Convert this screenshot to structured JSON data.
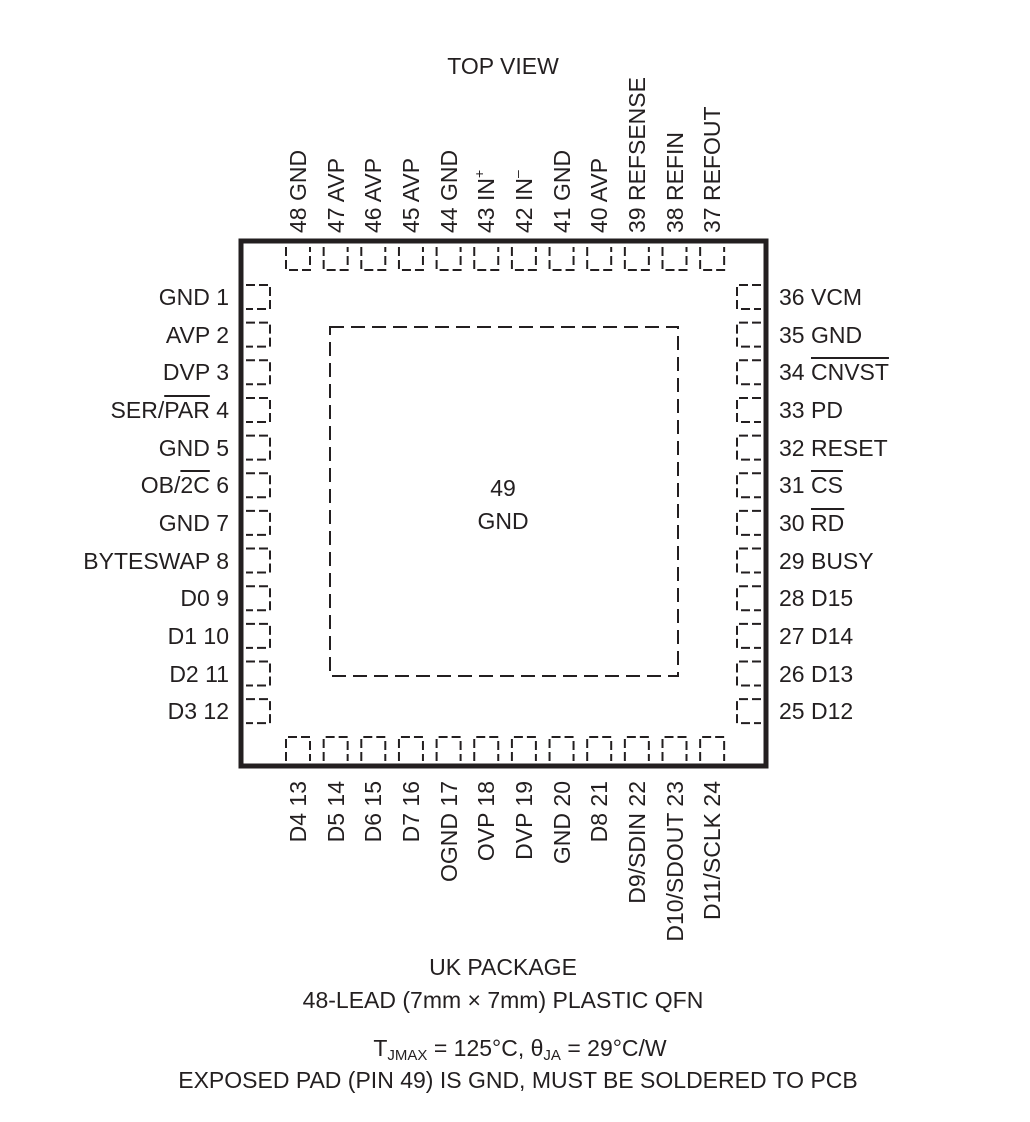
{
  "header": {
    "title": "TOP VIEW"
  },
  "exposed_pad": {
    "number": "49",
    "name": "GND"
  },
  "pins": {
    "left": [
      {
        "num": "1",
        "pre": "GND "
      },
      {
        "num": "2",
        "pre": "AVP "
      },
      {
        "num": "3",
        "pre": "DVP "
      },
      {
        "num": "4",
        "pre": "SER/",
        "bar": "PAR",
        "post": " "
      },
      {
        "num": "5",
        "pre": "GND "
      },
      {
        "num": "6",
        "pre": "OB/",
        "bar": "2C",
        "post": " "
      },
      {
        "num": "7",
        "pre": "GND  "
      },
      {
        "num": "8",
        "pre": "BYTESWAP "
      },
      {
        "num": "9",
        "pre": "D0 "
      },
      {
        "num": "10",
        "pre": "D1 "
      },
      {
        "num": "11",
        "pre": "D2 "
      },
      {
        "num": "12",
        "pre": "D3 "
      }
    ],
    "bottom": [
      {
        "num": "13",
        "pre": "D4 "
      },
      {
        "num": "14",
        "pre": "D5 "
      },
      {
        "num": "15",
        "pre": "D6 "
      },
      {
        "num": "16",
        "pre": "D7 "
      },
      {
        "num": "17",
        "pre": "OGND "
      },
      {
        "num": "18",
        "pre": "OVP "
      },
      {
        "num": "19",
        "pre": "DVP "
      },
      {
        "num": "20",
        "pre": "GND "
      },
      {
        "num": "21",
        "pre": "D8 "
      },
      {
        "num": "22",
        "pre": "D9/SDIN "
      },
      {
        "num": "23",
        "pre": "D10/SDOUT "
      },
      {
        "num": "24",
        "pre": "D11/SCLK "
      }
    ],
    "right": [
      {
        "num": "25",
        "pre": " D12"
      },
      {
        "num": "26",
        "pre": " D13"
      },
      {
        "num": "27",
        "pre": " D14"
      },
      {
        "num": "28",
        "pre": " D15"
      },
      {
        "num": "29",
        "pre": " BUSY"
      },
      {
        "num": "30",
        "pre": " ",
        "bar": "RD"
      },
      {
        "num": "31",
        "pre": " ",
        "bar": "CS"
      },
      {
        "num": "32",
        "pre": " RESET"
      },
      {
        "num": "33",
        "pre": " PD"
      },
      {
        "num": "34",
        "pre": " ",
        "bar": "CNVST"
      },
      {
        "num": "35",
        "pre": " GND"
      },
      {
        "num": "36",
        "pre": " VCM"
      }
    ],
    "top": [
      {
        "num": "37",
        "pre": " REFOUT"
      },
      {
        "num": "38",
        "pre": " REFIN"
      },
      {
        "num": "39",
        "pre": " REFSENSE"
      },
      {
        "num": "40",
        "pre": " AVP"
      },
      {
        "num": "41",
        "pre": " GND"
      },
      {
        "num": "42",
        "pre": " IN",
        "sup": "–"
      },
      {
        "num": "43",
        "pre": " IN",
        "sup": "+"
      },
      {
        "num": "44",
        "pre": " GND"
      },
      {
        "num": "45",
        "pre": " AVP"
      },
      {
        "num": "46",
        "pre": " AVP"
      },
      {
        "num": "47",
        "pre": " AVP"
      },
      {
        "num": "48",
        "pre": " GND"
      }
    ]
  },
  "footer": {
    "package": "UK PACKAGE",
    "description": "48-LEAD (7mm × 7mm) PLASTIC QFN",
    "thermal": {
      "t": "T",
      "t_sub": "JMAX",
      "t_val": " = 125°C, ",
      "theta": "θ",
      "theta_sub": "JA",
      "theta_val": " = 29°C/W"
    },
    "note": "EXPOSED PAD (PIN 49) IS GND, MUST BE SOLDERED TO PCB"
  }
}
